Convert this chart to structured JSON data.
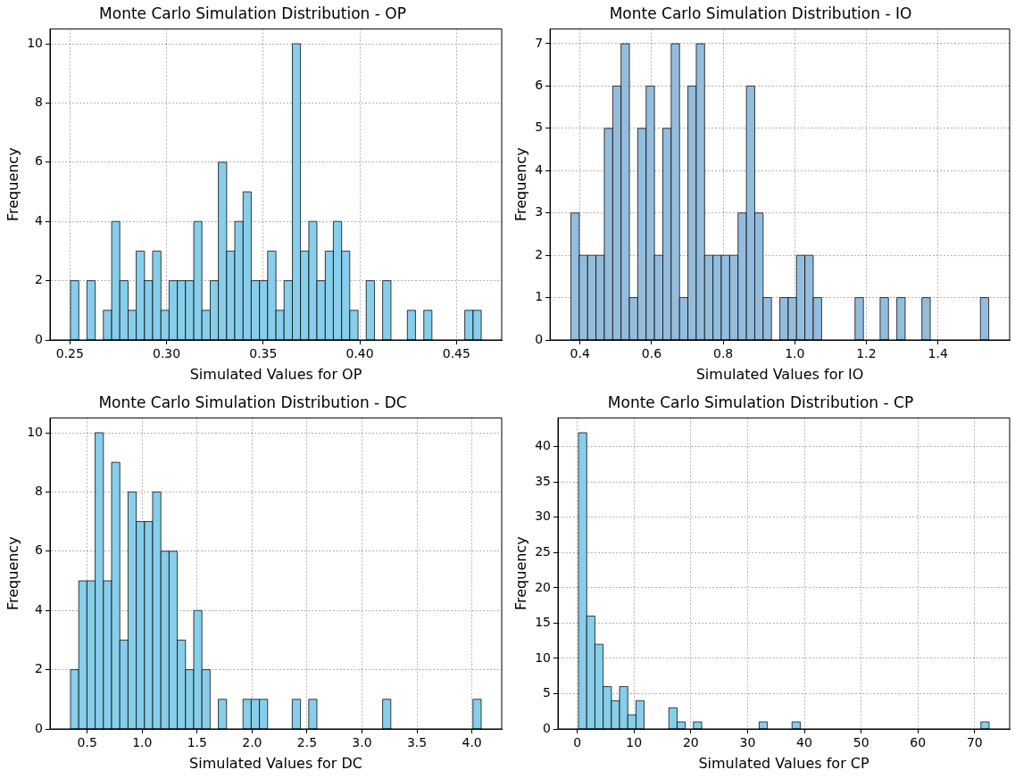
{
  "chart_data": [
    {
      "type": "histogram",
      "title": "Monte Carlo Simulation Distribution - OP",
      "xlabel": "Simulated Values for OP",
      "ylabel": "Frequency",
      "color": "#87ceeb",
      "grid": true,
      "bins": [
        0.2503,
        0.2546,
        0.2588,
        0.2631,
        0.2673,
        0.2716,
        0.2758,
        0.2801,
        0.2843,
        0.2886,
        0.2928,
        0.2971,
        0.3013,
        0.3056,
        0.3098,
        0.3141,
        0.3183,
        0.3226,
        0.3268,
        0.3311,
        0.3353,
        0.3396,
        0.3438,
        0.3481,
        0.3523,
        0.3566,
        0.3608,
        0.3651,
        0.3693,
        0.3736,
        0.3778,
        0.3821,
        0.3863,
        0.3906,
        0.3948,
        0.3991,
        0.4033,
        0.4076,
        0.4118,
        0.4161,
        0.4203,
        0.4246,
        0.4288,
        0.4331,
        0.4373,
        0.4416,
        0.4458,
        0.4501,
        0.4543,
        0.4586,
        0.4628
      ],
      "values": [
        2,
        0,
        2,
        0,
        1,
        4,
        2,
        1,
        3,
        2,
        3,
        1,
        2,
        2,
        2,
        4,
        1,
        2,
        6,
        3,
        4,
        5,
        2,
        2,
        3,
        1,
        2,
        10,
        3,
        4,
        2,
        3,
        4,
        3,
        1,
        0,
        2,
        0,
        2,
        0,
        0,
        1,
        0,
        1,
        0,
        0,
        0,
        0,
        1,
        1
      ],
      "xlim": [
        0.2397,
        0.4734
      ],
      "xticks": [
        0.25,
        {
          "value": 0.3,
          "label": "0.30"
        },
        0.35,
        {
          "value": 0.4,
          "label": "0.40"
        },
        0.45
      ],
      "ylim": [
        0,
        10.5
      ],
      "yticks": [
        0,
        2,
        4,
        6,
        8,
        10
      ]
    },
    {
      "type": "histogram",
      "title": "Monte Carlo Simulation Distribution - IO",
      "xlabel": "Simulated Values for IO",
      "ylabel": "Frequency",
      "color": "#94bddd",
      "grid": true,
      "bins": [
        0.3745,
        0.3979,
        0.4212,
        0.4446,
        0.4679,
        0.4913,
        0.5146,
        0.538,
        0.5613,
        0.5847,
        0.608,
        0.6314,
        0.6547,
        0.6781,
        0.7014,
        0.7248,
        0.7481,
        0.7715,
        0.7948,
        0.8182,
        0.8415,
        0.8649,
        0.8882,
        0.9116,
        0.9349,
        0.9583,
        0.9816,
        1.005,
        1.0283,
        1.0517,
        1.075,
        1.0984,
        1.1217,
        1.1451,
        1.1684,
        1.1918,
        1.2151,
        1.2385,
        1.2618,
        1.2852,
        1.3085,
        1.3319,
        1.3552,
        1.3786,
        1.4019,
        1.4253,
        1.4486,
        1.472,
        1.4953,
        1.5187,
        1.542
      ],
      "values": [
        3,
        2,
        2,
        2,
        5,
        6,
        7,
        1,
        5,
        6,
        2,
        5,
        7,
        1,
        6,
        7,
        2,
        2,
        2,
        2,
        3,
        6,
        3,
        1,
        0,
        1,
        1,
        2,
        2,
        1,
        0,
        0,
        0,
        0,
        1,
        0,
        0,
        1,
        0,
        1,
        0,
        0,
        1,
        0,
        0,
        0,
        0,
        0,
        0,
        1
      ],
      "xlim": [
        0.3161,
        1.6004
      ],
      "xticks": [
        0.4,
        0.6,
        0.8,
        {
          "value": 1,
          "label": "1.0"
        },
        1.2,
        1.4
      ],
      "ylim": [
        0,
        7.35
      ],
      "yticks": [
        0,
        1,
        2,
        3,
        4,
        5,
        6,
        7
      ]
    },
    {
      "type": "histogram",
      "title": "Monte Carlo Simulation Distribution - DC",
      "xlabel": "Simulated Values for DC",
      "ylabel": "Frequency",
      "color": "#87ceeb",
      "grid": true,
      "bins": [
        0.3483,
        0.423,
        0.4977,
        0.5725,
        0.6472,
        0.7219,
        0.7966,
        0.8713,
        0.9461,
        1.0208,
        1.0955,
        1.1702,
        1.2449,
        1.3197,
        1.3944,
        1.4691,
        1.5438,
        1.6185,
        1.6933,
        1.768,
        1.8427,
        1.9174,
        1.9921,
        2.0669,
        2.1416,
        2.2163,
        2.291,
        2.3657,
        2.4405,
        2.5152,
        2.5899,
        2.6646,
        2.7393,
        2.8141,
        2.8888,
        2.9635,
        3.0382,
        3.1129,
        3.1877,
        3.2624,
        3.3371,
        3.4118,
        3.4865,
        3.5613,
        3.636,
        3.7107,
        3.7854,
        3.8601,
        3.9349,
        4.0096,
        4.0843
      ],
      "values": [
        2,
        5,
        5,
        10,
        5,
        9,
        3,
        8,
        7,
        7,
        8,
        6,
        6,
        3,
        2,
        4,
        2,
        0,
        1,
        0,
        0,
        1,
        1,
        1,
        0,
        0,
        0,
        1,
        0,
        1,
        0,
        0,
        0,
        0,
        0,
        0,
        0,
        0,
        1,
        0,
        0,
        0,
        0,
        0,
        0,
        0,
        0,
        0,
        0,
        1
      ],
      "xlim": [
        0.1615,
        4.2711
      ],
      "xticks": [
        0.5,
        {
          "value": 1,
          "label": "1.0"
        },
        1.5,
        {
          "value": 2,
          "label": "2.0"
        },
        2.5,
        {
          "value": 3,
          "label": "3.0"
        },
        3.5,
        {
          "value": 4,
          "label": "4.0"
        }
      ],
      "ylim": [
        0,
        10.5
      ],
      "yticks": [
        0,
        2,
        4,
        6,
        8,
        10
      ]
    },
    {
      "type": "histogram",
      "title": "Monte Carlo Simulation Distribution - CP",
      "xlabel": "Simulated Values for CP",
      "ylabel": "Frequency",
      "color": "#87ceeb",
      "grid": true,
      "bins": [
        0.22,
        1.67,
        3.11,
        4.56,
        6.01,
        7.45,
        8.9,
        10.35,
        11.79,
        13.24,
        14.69,
        16.13,
        17.58,
        19.02,
        20.47,
        21.92,
        23.36,
        24.81,
        26.26,
        27.7,
        29.15,
        30.6,
        32.04,
        33.49,
        34.94,
        36.38,
        37.83,
        39.28,
        40.72,
        42.17,
        43.62,
        45.06,
        46.51,
        47.95,
        49.4,
        50.85,
        52.29,
        53.74,
        55.19,
        56.63,
        58.08,
        59.53,
        60.97,
        62.42,
        63.87,
        65.31,
        66.76,
        68.21,
        69.65,
        71.1,
        72.54
      ],
      "values": [
        42,
        16,
        12,
        6,
        4,
        6,
        2,
        4,
        0,
        0,
        0,
        3,
        1,
        0,
        1,
        0,
        0,
        0,
        0,
        0,
        0,
        0,
        1,
        0,
        0,
        0,
        1,
        0,
        0,
        0,
        0,
        0,
        0,
        0,
        0,
        0,
        0,
        0,
        0,
        0,
        0,
        0,
        0,
        0,
        0,
        0,
        0,
        0,
        0,
        1
      ],
      "xlim": [
        -3.4,
        76.16
      ],
      "xticks": [
        0,
        10,
        20,
        30,
        40,
        50,
        60,
        70
      ],
      "ylim": [
        0,
        44.1
      ],
      "yticks": [
        0,
        5,
        10,
        15,
        20,
        25,
        30,
        35,
        40
      ]
    }
  ]
}
